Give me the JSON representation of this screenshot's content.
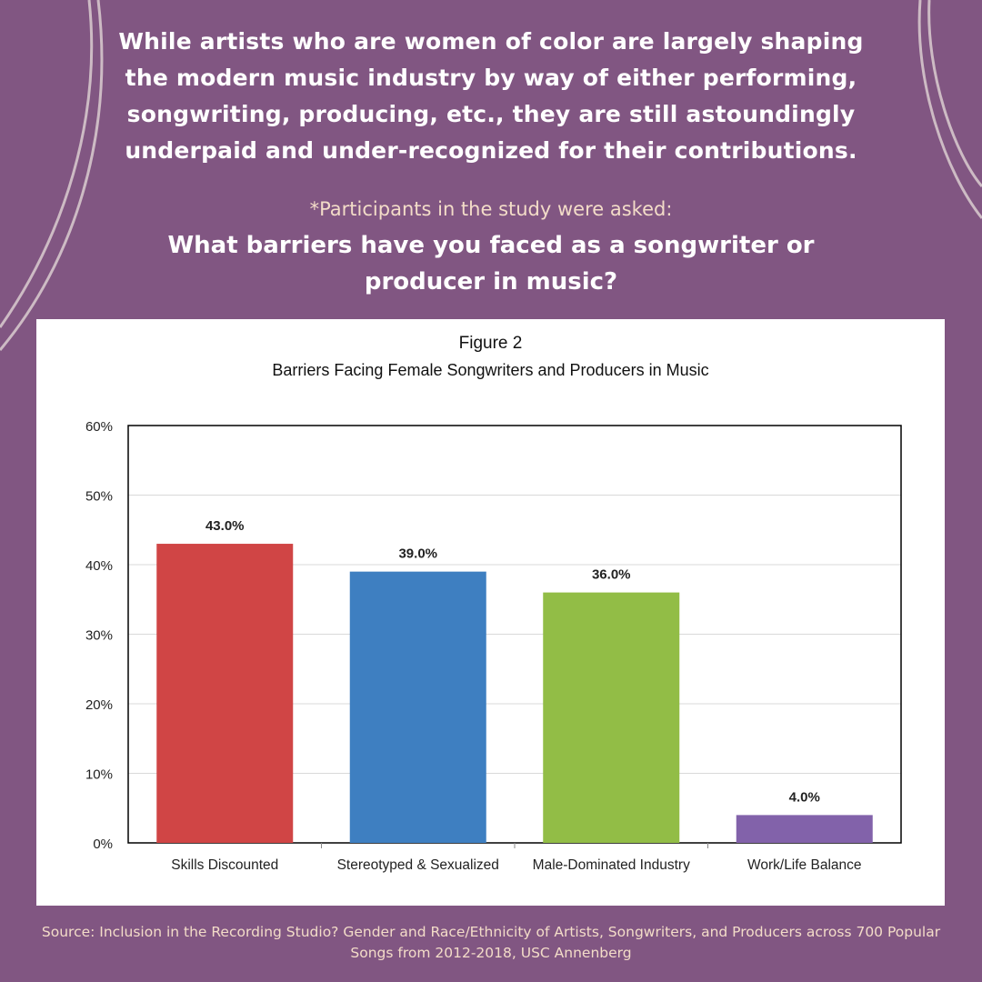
{
  "intro_text": "While artists who are women of color are largely shaping the modern music industry by way of either performing, songwriting, producing, etc., they are still astoundingly underpaid and under-recognized for their contributions.",
  "asked_text": "*Participants in the study were asked:",
  "question_text": "What barriers have you faced as a songwriter or producer in music?",
  "source_text": "Source: Inclusion in the Recording Studio? Gender and Race/Ethnicity of Artists, Songwriters, and Producers across 700 Popular Songs from 2012-2018, USC Annenberg",
  "colors": {
    "background": "#815682",
    "bars": [
      "#d04545",
      "#3e7fc1",
      "#92bd46",
      "#8262aa"
    ]
  },
  "chart_data": {
    "type": "bar",
    "title": "Figure 2",
    "subtitle": "Barriers Facing Female Songwriters and Producers in Music",
    "categories": [
      "Skills Discounted",
      "Stereotyped & Sexualized",
      "Male-Dominated Industry",
      "Work/Life Balance"
    ],
    "values": [
      43.0,
      39.0,
      36.0,
      4.0
    ],
    "data_labels": [
      "43.0%",
      "39.0%",
      "36.0%",
      "4.0%"
    ],
    "yticks": [
      "0%",
      "10%",
      "20%",
      "30%",
      "40%",
      "50%",
      "60%"
    ],
    "ylim": [
      0,
      60
    ],
    "xlabel": "",
    "ylabel": "",
    "grid": true
  }
}
